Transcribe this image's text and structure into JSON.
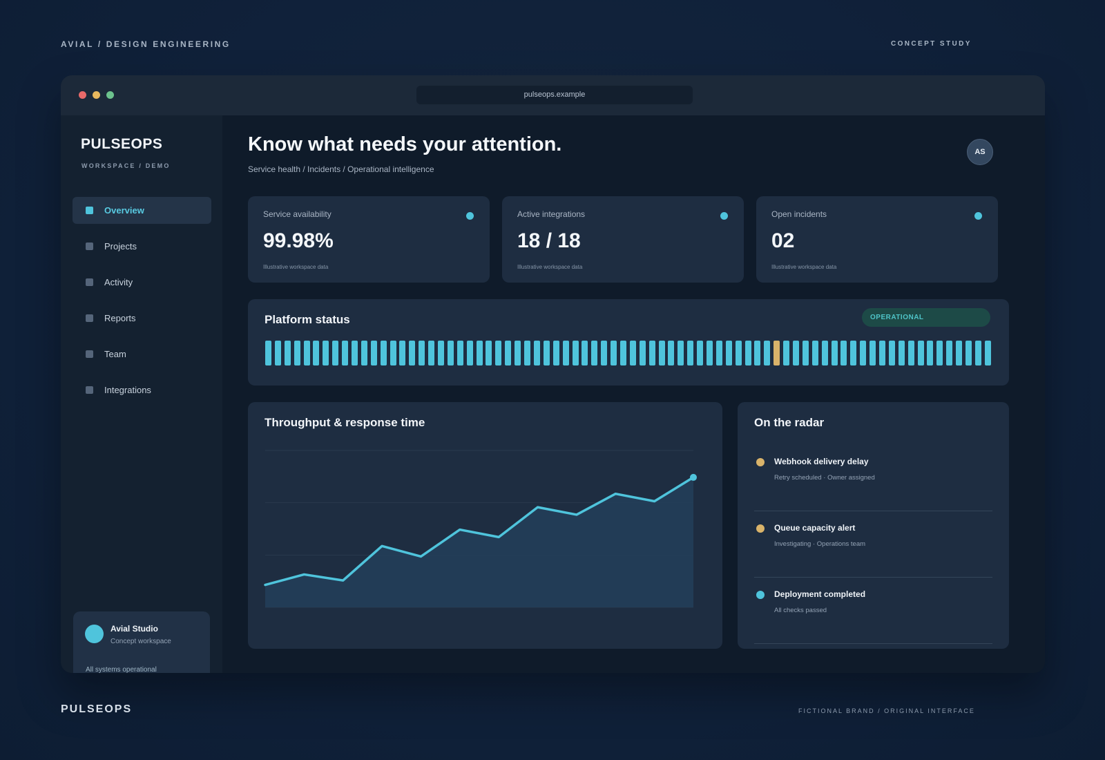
{
  "frame": {
    "top_left": "AVIAL  /  DESIGN ENGINEERING",
    "top_right": "CONCEPT STUDY",
    "bottom_left": "PULSEOPS",
    "bottom_right": "FICTIONAL BRAND / ORIGINAL INTERFACE"
  },
  "browser": {
    "url": "pulseops.example"
  },
  "sidebar": {
    "brand": "PULSEOPS",
    "workspace": "WORKSPACE / DEMO",
    "items": [
      {
        "label": "Overview",
        "active": true
      },
      {
        "label": "Projects",
        "active": false
      },
      {
        "label": "Activity",
        "active": false
      },
      {
        "label": "Reports",
        "active": false
      },
      {
        "label": "Team",
        "active": false
      },
      {
        "label": "Integrations",
        "active": false
      }
    ],
    "studio": {
      "name": "Avial Studio",
      "subtitle": "Concept workspace",
      "status": "All systems operational"
    }
  },
  "header": {
    "headline": "Know what needs your attention.",
    "breadcrumb": "Service health / Incidents / Operational intelligence",
    "avatar_initials": "AS"
  },
  "kpis": [
    {
      "label": "Service availability",
      "value": "99.98%",
      "note": "Illustrative workspace data"
    },
    {
      "label": "Active integrations",
      "value": "18 / 18",
      "note": "Illustrative workspace data"
    },
    {
      "label": "Open incidents",
      "value": "02",
      "note": "Illustrative workspace data"
    }
  ],
  "platform_status": {
    "title": "Platform status",
    "badge": "OPERATIONAL",
    "bar_count": 76,
    "warning_index": 53
  },
  "chart": {
    "title": "Throughput & response time"
  },
  "chart_data": {
    "type": "area",
    "title": "Throughput & response time",
    "xlabel": "",
    "ylabel": "",
    "series": [
      {
        "values": [
          10,
          17,
          13,
          36,
          29,
          47,
          42,
          62,
          57,
          71,
          66,
          82
        ]
      }
    ],
    "ylim": [
      -5,
      100
    ],
    "grid": true,
    "legend": "none"
  },
  "radar": {
    "title": "On the radar",
    "items": [
      {
        "title": "Webhook delivery delay",
        "subtitle": "Retry scheduled · Owner assigned",
        "color": "#d9b36a"
      },
      {
        "title": "Queue capacity alert",
        "subtitle": "Investigating · Operations team",
        "color": "#d9b36a"
      },
      {
        "title": "Deployment completed",
        "subtitle": "All checks passed",
        "color": "#4fc4dc"
      }
    ]
  },
  "colors": {
    "accent": "#4fc4dc",
    "warning": "#d9b36a",
    "background": "#10213a",
    "card": "#1e2d41"
  }
}
